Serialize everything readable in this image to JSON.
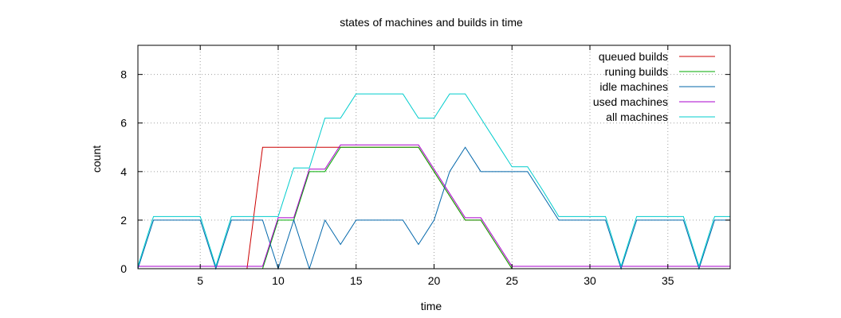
{
  "chart_data": {
    "type": "line",
    "title": "states of machines and builds in time",
    "xlabel": "time",
    "ylabel": "count",
    "xlim": [
      1,
      39
    ],
    "ylim": [
      0,
      9.2
    ],
    "xticks": [
      5,
      10,
      15,
      20,
      25,
      30,
      35
    ],
    "yticks": [
      0,
      2,
      4,
      6,
      8
    ],
    "grid": true,
    "legend_position": "top-right",
    "x": [
      1,
      2,
      3,
      4,
      5,
      6,
      7,
      8,
      9,
      10,
      11,
      12,
      13,
      14,
      15,
      16,
      17,
      18,
      19,
      20,
      21,
      22,
      23,
      24,
      25,
      26,
      27,
      28,
      29,
      30,
      31,
      32,
      33,
      34,
      35,
      36,
      37,
      38,
      39
    ],
    "series": [
      {
        "name": "queued builds",
        "color": "#cc0000",
        "values": [
          0,
          0,
          0,
          0,
          0,
          0,
          0,
          0,
          5,
          5,
          5,
          5,
          5,
          5,
          5,
          5,
          5,
          5,
          5,
          4,
          3,
          2,
          2,
          1,
          0,
          0,
          0,
          0,
          0,
          0,
          0,
          0,
          0,
          0,
          0,
          0,
          0,
          0,
          0
        ]
      },
      {
        "name": "runing builds",
        "color": "#00aa00",
        "values": [
          0,
          0,
          0,
          0,
          0,
          0,
          0,
          0,
          0,
          2,
          2,
          4,
          4,
          5,
          5,
          5,
          5,
          5,
          5,
          4,
          3,
          2,
          2,
          1,
          0,
          0,
          0,
          0,
          0,
          0,
          0,
          0,
          0,
          0,
          0,
          0,
          0,
          0,
          0
        ]
      },
      {
        "name": "idle machines",
        "color": "#0066aa",
        "values": [
          0,
          2,
          2,
          2,
          2,
          0,
          2,
          2,
          2,
          0,
          2,
          0,
          2,
          1,
          2,
          2,
          2,
          2,
          1,
          2,
          4,
          5,
          4,
          4,
          4,
          4,
          3,
          2,
          2,
          2,
          2,
          0,
          2,
          2,
          2,
          2,
          0,
          2,
          2
        ]
      },
      {
        "name": "used machines",
        "color": "#aa00cc",
        "values": [
          0.1,
          0.1,
          0.1,
          0.1,
          0.1,
          0.1,
          0.1,
          0.1,
          0.1,
          2.1,
          2.1,
          4.1,
          4.1,
          5.1,
          5.1,
          5.1,
          5.1,
          5.1,
          5.1,
          4.1,
          3.1,
          2.1,
          2.1,
          1.1,
          0.1,
          0.1,
          0.1,
          0.1,
          0.1,
          0.1,
          0.1,
          0.1,
          0.1,
          0.1,
          0.1,
          0.1,
          0.1,
          0.1,
          0.1
        ]
      },
      {
        "name": "all machines",
        "color": "#00cccc",
        "values": [
          0.1,
          2.15,
          2.15,
          2.15,
          2.15,
          0.1,
          2.15,
          2.15,
          2.15,
          2.15,
          4.15,
          4.15,
          6.2,
          6.2,
          7.2,
          7.2,
          7.2,
          7.2,
          6.2,
          6.2,
          7.2,
          7.2,
          6.2,
          5.2,
          4.2,
          4.2,
          3.2,
          2.15,
          2.15,
          2.15,
          2.15,
          0.1,
          2.15,
          2.15,
          2.15,
          2.15,
          0.1,
          2.15,
          2.15
        ]
      }
    ]
  }
}
